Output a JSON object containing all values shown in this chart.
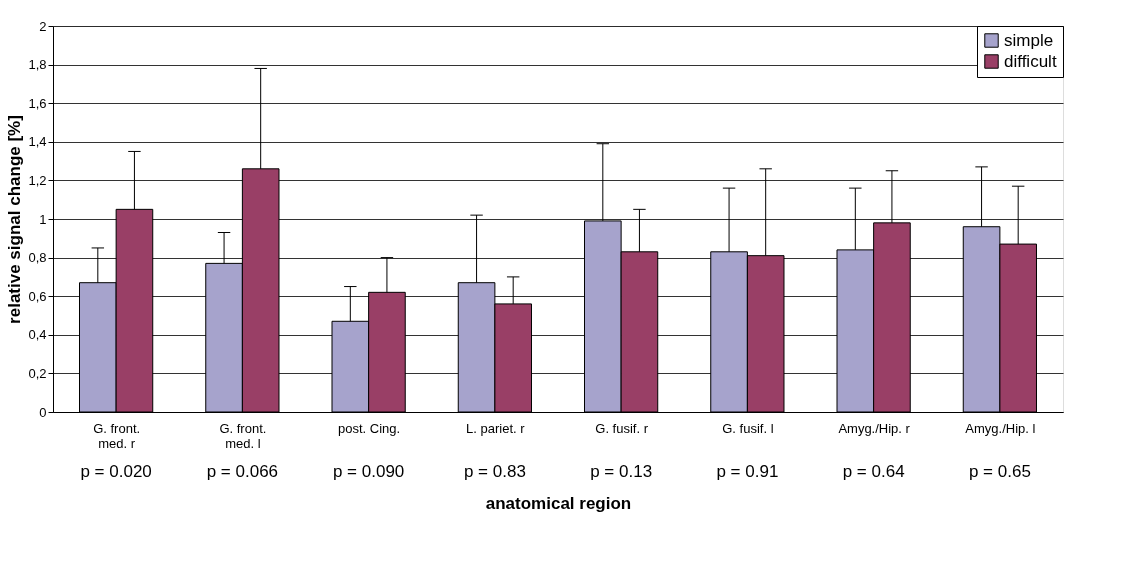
{
  "chart_data": {
    "type": "bar",
    "xlabel": "anatomical region",
    "ylabel": "relative signal change [%]",
    "categories": [
      "G. front.\nmed. r",
      "G. front.\nmed. l",
      "post. Cing.",
      "L. pariet. r",
      "G. fusif. r",
      "G. fusif. l",
      "Amyg./Hip. r",
      "Amyg./Hip. l"
    ],
    "series": [
      {
        "name": "simple",
        "color": "#a6a3cc",
        "values": [
          0.67,
          0.77,
          0.47,
          0.67,
          0.99,
          0.83,
          0.84,
          0.96
        ],
        "errors": [
          [
            0.67,
            0.85
          ],
          [
            0.77,
            0.93
          ],
          [
            0.47,
            0.65
          ],
          [
            0.67,
            1.02
          ],
          [
            0.99,
            1.39
          ],
          [
            0.83,
            1.16
          ],
          [
            0.84,
            1.16
          ],
          [
            0.96,
            1.27
          ]
        ]
      },
      {
        "name": "difficult",
        "color": "#993f66",
        "values": [
          1.05,
          1.26,
          0.62,
          0.56,
          0.83,
          0.81,
          0.98,
          0.87
        ],
        "errors": [
          [
            1.05,
            1.35
          ],
          [
            1.26,
            1.78
          ],
          [
            0.62,
            0.8
          ],
          [
            0.56,
            0.7
          ],
          [
            0.83,
            1.05
          ],
          [
            0.81,
            1.26
          ],
          [
            0.98,
            1.25
          ],
          [
            0.87,
            1.17
          ]
        ]
      }
    ],
    "ylim": [
      0,
      2
    ],
    "yticks": [
      0,
      {
        "value": 0.2,
        "label": "0,2"
      },
      {
        "value": 0.4,
        "label": "0,4"
      },
      {
        "value": 0.6,
        "label": "0,6"
      },
      {
        "value": 0.8,
        "label": "0,8"
      },
      1,
      {
        "value": 1.2,
        "label": "1,2"
      },
      {
        "value": 1.4,
        "label": "1,4"
      },
      {
        "value": 1.6,
        "label": "1,6"
      },
      {
        "value": 1.8,
        "label": "1,8"
      },
      2
    ],
    "grid": "y",
    "legend": "top right",
    "annotations": [
      "p = 0.020",
      "p = 0.066",
      "p = 0.090",
      "p = 0.83",
      "p = 0.13",
      "p = 0.91",
      "p = 0.64",
      "p = 0.65"
    ]
  }
}
